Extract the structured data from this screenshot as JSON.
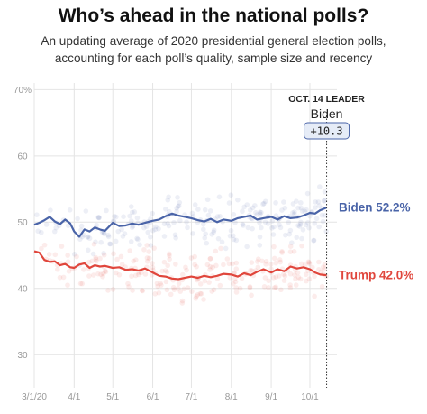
{
  "title": "Who’s ahead in the national polls?",
  "subtitle_lines": [
    "An updating average of 2020 presidential general election polls,",
    "accounting for each poll’s quality, sample size and recency"
  ],
  "colors": {
    "biden": "#4a64a8",
    "trump": "#e0463c",
    "grid": "#e4e4e4",
    "axis_text": "#999999"
  },
  "chart_data": {
    "type": "line",
    "title": "Who’s ahead in the national polls?",
    "subtitle": "An updating average of 2020 presidential general election polls, accounting for each poll’s quality, sample size and recency",
    "x_tick_labels": [
      "3/1/20",
      "4/1",
      "5/1",
      "6/1",
      "7/1",
      "8/1",
      "9/1",
      "10/1"
    ],
    "x_tick_days": [
      0,
      31,
      61,
      92,
      122,
      153,
      184,
      214
    ],
    "y_tick_labels": [
      "70%",
      "60",
      "50",
      "40",
      "30"
    ],
    "y_tick_values": [
      70,
      60,
      50,
      40,
      30
    ],
    "ylim": [
      25,
      71
    ],
    "xlim_days": [
      0,
      235
    ],
    "grid": true,
    "leader_date_day": 227,
    "leader": {
      "label": "OCT. 14 LEADER",
      "name": "Biden",
      "margin": "+10.3"
    },
    "series": [
      {
        "name": "Biden",
        "color": "#4a64a8",
        "end_label": "Biden 52.2%",
        "x": [
          0,
          4,
          8,
          12,
          16,
          20,
          24,
          28,
          31,
          35,
          39,
          43,
          47,
          51,
          55,
          61,
          66,
          71,
          76,
          81,
          86,
          92,
          97,
          102,
          107,
          112,
          117,
          122,
          127,
          132,
          137,
          142,
          147,
          153,
          158,
          163,
          168,
          173,
          178,
          184,
          189,
          194,
          199,
          204,
          209,
          214,
          218,
          222,
          227
        ],
        "values": [
          49.6,
          49.9,
          50.3,
          50.8,
          50.1,
          49.7,
          50.4,
          49.8,
          48.6,
          47.8,
          48.9,
          48.6,
          49.2,
          48.9,
          48.7,
          49.9,
          49.4,
          49.5,
          49.8,
          49.6,
          49.9,
          50.2,
          50.4,
          50.9,
          51.3,
          51.0,
          50.8,
          50.6,
          50.3,
          50.1,
          50.5,
          50.0,
          50.4,
          50.2,
          50.6,
          50.8,
          51.0,
          50.4,
          50.6,
          50.8,
          50.4,
          50.9,
          50.6,
          50.7,
          51.0,
          51.4,
          51.3,
          51.8,
          52.2
        ]
      },
      {
        "name": "Trump",
        "color": "#e0463c",
        "end_label": "Trump 42.0%",
        "x": [
          0,
          4,
          8,
          12,
          16,
          20,
          24,
          28,
          31,
          35,
          39,
          43,
          47,
          51,
          55,
          61,
          66,
          71,
          76,
          81,
          86,
          92,
          97,
          102,
          107,
          112,
          117,
          122,
          127,
          132,
          137,
          142,
          147,
          153,
          158,
          163,
          168,
          173,
          178,
          184,
          189,
          194,
          199,
          204,
          209,
          214,
          218,
          222,
          227
        ],
        "values": [
          45.6,
          45.4,
          44.3,
          44.0,
          44.1,
          43.5,
          43.7,
          43.2,
          43.1,
          43.6,
          43.8,
          43.1,
          43.5,
          43.3,
          43.4,
          43.1,
          43.2,
          42.8,
          42.9,
          42.7,
          43.0,
          42.4,
          41.9,
          41.8,
          41.5,
          41.4,
          41.6,
          41.8,
          41.6,
          41.9,
          41.7,
          41.9,
          42.2,
          42.1,
          41.8,
          42.3,
          42.0,
          42.5,
          42.9,
          42.4,
          42.9,
          42.6,
          43.3,
          43.0,
          43.2,
          42.9,
          42.4,
          42.1,
          42.0
        ]
      }
    ]
  }
}
